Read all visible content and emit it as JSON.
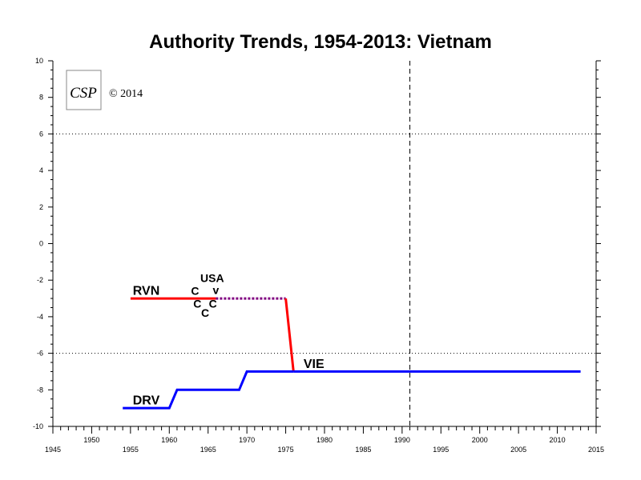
{
  "chart_data": {
    "type": "line",
    "title": "Authority Trends, 1954-2013: Vietnam",
    "xlabel": "",
    "ylabel": "",
    "xlim": [
      1945,
      2015
    ],
    "ylim": [
      -10,
      10
    ],
    "x_ticks": [
      1945,
      1950,
      1955,
      1960,
      1965,
      1970,
      1975,
      1980,
      1985,
      1990,
      1995,
      2000,
      2005,
      2010,
      2015
    ],
    "y_ticks": [
      10,
      8,
      6,
      4,
      2,
      0,
      -2,
      -4,
      -6,
      -8,
      -10
    ],
    "reference_lines": {
      "dotted_y": [
        6,
        -6
      ],
      "dashed_x": 1991
    },
    "grid": false,
    "series": [
      {
        "name": "RVN",
        "color": "#ff0000",
        "style": "solid",
        "points": [
          [
            1955,
            -3
          ],
          [
            1966,
            -3
          ]
        ]
      },
      {
        "name": "",
        "color": "#800080",
        "style": "dotted",
        "points": [
          [
            1966,
            -3
          ],
          [
            1975,
            -3
          ]
        ]
      },
      {
        "name": "",
        "color": "#ff0000",
        "style": "solid",
        "points": [
          [
            1975,
            -3
          ],
          [
            1976,
            -7
          ]
        ]
      },
      {
        "name": "DRV",
        "color": "#0000ff",
        "style": "solid",
        "points": [
          [
            1954,
            -9
          ],
          [
            1960,
            -9
          ],
          [
            1961,
            -8
          ],
          [
            1969,
            -8
          ],
          [
            1970,
            -7
          ],
          [
            1976,
            -7
          ]
        ]
      },
      {
        "name": "VIE",
        "color": "#0000ff",
        "style": "solid",
        "points": [
          [
            1976,
            -7
          ],
          [
            2013,
            -7
          ]
        ]
      }
    ],
    "annotations": [
      {
        "text": "RVN",
        "x": 1955.3,
        "y": -2.8,
        "kind": "series"
      },
      {
        "text": "DRV",
        "x": 1955.3,
        "y": -8.8,
        "kind": "series"
      },
      {
        "text": "VIE",
        "x": 1977.3,
        "y": -6.8,
        "kind": "series"
      },
      {
        "text": "C",
        "x": 1962.8,
        "y": -2.8,
        "kind": "event"
      },
      {
        "text": "USA",
        "x": 1964.0,
        "y": -2.1,
        "kind": "event-foreign",
        "color": "#ff8c00"
      },
      {
        "text": "v",
        "x": 1965.6,
        "y": -2.75,
        "kind": "event-foreign",
        "color": "#ff8c00"
      },
      {
        "text": "C",
        "x": 1963.1,
        "y": -3.5,
        "kind": "event"
      },
      {
        "text": "C",
        "x": 1965.1,
        "y": -3.5,
        "kind": "event"
      },
      {
        "text": "C",
        "x": 1964.1,
        "y": -4.0,
        "kind": "event"
      }
    ]
  },
  "logo": {
    "letters": "CSP",
    "caption": "© 2014"
  }
}
